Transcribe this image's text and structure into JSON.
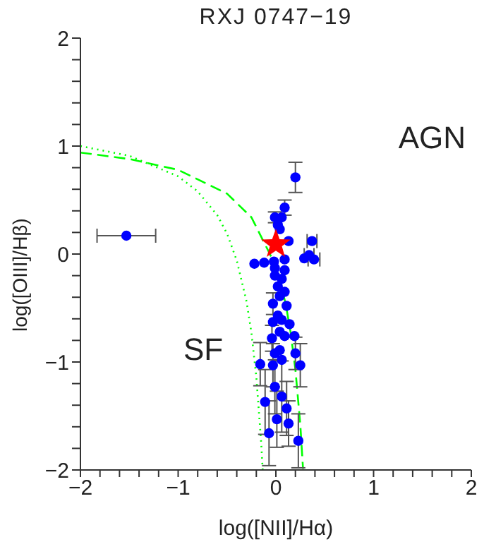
{
  "chart_data": {
    "type": "scatter",
    "title": "RXJ 0747−19",
    "xlabel": "log([NII]/Hα)",
    "ylabel": "log([OIII]/Hβ)",
    "xlim": [
      -2,
      2
    ],
    "ylim": [
      -2,
      2
    ],
    "xticks": [
      -2,
      {
        "value": -1.8,
        "label": null
      },
      {
        "value": -1.6,
        "label": null
      },
      {
        "value": -1.4,
        "label": null
      },
      {
        "value": -1.2,
        "label": null
      },
      -1,
      {
        "value": -0.8,
        "label": null
      },
      {
        "value": -0.6,
        "label": null
      },
      {
        "value": -0.4,
        "label": null
      },
      {
        "value": -0.2,
        "label": null
      },
      0,
      {
        "value": 0.2,
        "label": null
      },
      {
        "value": 0.4,
        "label": null
      },
      {
        "value": 0.6,
        "label": null
      },
      {
        "value": 0.8,
        "label": null
      },
      1,
      {
        "value": 1.2,
        "label": null
      },
      {
        "value": 1.4,
        "label": null
      },
      {
        "value": 1.6,
        "label": null
      },
      {
        "value": 1.8,
        "label": null
      },
      2
    ],
    "yticks": [
      -2,
      {
        "value": -1.8,
        "label": null
      },
      {
        "value": -1.6,
        "label": null
      },
      {
        "value": -1.4,
        "label": null
      },
      {
        "value": -1.2,
        "label": null
      },
      -1,
      {
        "value": -0.8,
        "label": null
      },
      {
        "value": -0.6,
        "label": null
      },
      {
        "value": -0.4,
        "label": null
      },
      {
        "value": -0.2,
        "label": null
      },
      0,
      {
        "value": 0.2,
        "label": null
      },
      {
        "value": 0.4,
        "label": null
      },
      {
        "value": 0.6,
        "label": null
      },
      {
        "value": 0.8,
        "label": null
      },
      1,
      {
        "value": 1.2,
        "label": null
      },
      {
        "value": 1.4,
        "label": null
      },
      {
        "value": 1.6,
        "label": null
      },
      {
        "value": 1.8,
        "label": null
      },
      2
    ],
    "grid": false,
    "legend": false,
    "annotations": [
      "AGN",
      "SF"
    ],
    "series": [
      {
        "type": "line",
        "color": "#00ff00",
        "line_style": "dashed",
        "marker": "none",
        "x": [
          -2,
          -1.5,
          -1,
          -0.5,
          -0.25,
          0,
          0.1,
          0.15,
          0.2,
          0.25,
          0.278
        ],
        "values": [
          0.94,
          0.88,
          0.78,
          0.56,
          0.34,
          -0.11,
          -0.46,
          -0.72,
          -1.07,
          -1.58,
          -1.99
        ]
      },
      {
        "type": "line",
        "color": "#00ff00",
        "line_style": "dotted",
        "marker": "none",
        "x": [
          -2,
          -1.5,
          -1,
          -0.8,
          -0.6,
          -0.5,
          -0.4,
          -0.3,
          -0.25,
          -0.2,
          -0.15,
          -0.135
        ],
        "values": [
          1.0,
          0.91,
          0.72,
          0.58,
          0.36,
          0.19,
          -0.06,
          -0.44,
          -0.73,
          -1.14,
          -1.75,
          -2.0
        ]
      },
      {
        "color": "#0000ff",
        "marker": "circle",
        "x": [
          -1.53,
          0.2,
          0.09,
          -0.01,
          0.06,
          0.02,
          0.04,
          0.13,
          0.37,
          0.34,
          0.29,
          0.39,
          -0.22,
          -0.12,
          -0.02,
          0.09,
          -0.01,
          0.09,
          -0.01,
          0.06,
          0.02,
          0.09,
          0.04,
          -0.03,
          0.11,
          0.02,
          0.06,
          -0.03,
          0.14,
          0.04,
          -0.04,
          0.09,
          0.19,
          -0.01,
          0.04,
          0.2,
          -0.16,
          -0.03,
          0.06,
          0.25,
          -0.01,
          0.06,
          -0.11,
          0.11,
          0.01,
          0.13,
          -0.07,
          0.23
        ],
        "values": [
          0.17,
          0.71,
          0.43,
          0.34,
          0.34,
          0.27,
          0.23,
          0.12,
          0.12,
          -0.01,
          -0.04,
          -0.05,
          -0.09,
          -0.08,
          -0.07,
          -0.05,
          -0.13,
          -0.15,
          -0.2,
          -0.23,
          -0.3,
          -0.35,
          -0.39,
          -0.46,
          -0.48,
          -0.57,
          -0.61,
          -0.63,
          -0.65,
          -0.72,
          -0.78,
          -0.76,
          -0.76,
          -0.92,
          -0.89,
          -0.92,
          -1.02,
          -1.03,
          -0.98,
          -1.03,
          -1.23,
          -1.32,
          -1.37,
          -1.43,
          -1.53,
          -1.57,
          -1.66,
          -1.73
        ],
        "errors": [
          null,
          0.14,
          0.07,
          0.05,
          null,
          null,
          null,
          null,
          null,
          null,
          null,
          null,
          null,
          null,
          null,
          null,
          null,
          null,
          null,
          null,
          null,
          null,
          null,
          0.1,
          null,
          null,
          null,
          null,
          null,
          null,
          0.12,
          null,
          null,
          null,
          null,
          0.15,
          0.2,
          0.2,
          null,
          0.2,
          0.25,
          0.33,
          0.3,
          0.25,
          0.26,
          0.21,
          0.3,
          0.25
        ],
        "xerrors": [
          0.3,
          null,
          null,
          null,
          null,
          null,
          null,
          null,
          0.05,
          0.05,
          null,
          0.06,
          null,
          null,
          null,
          null,
          null,
          null,
          null,
          null,
          null,
          null,
          null,
          null,
          null,
          null,
          null,
          null,
          null,
          null,
          null,
          null,
          null,
          null,
          null,
          null,
          null,
          null,
          null,
          null,
          null,
          null,
          null,
          null,
          null,
          null,
          null,
          null
        ]
      },
      {
        "color": "#ff0000",
        "marker": "star",
        "x": [
          0
        ],
        "values": [
          0.09
        ]
      }
    ]
  }
}
